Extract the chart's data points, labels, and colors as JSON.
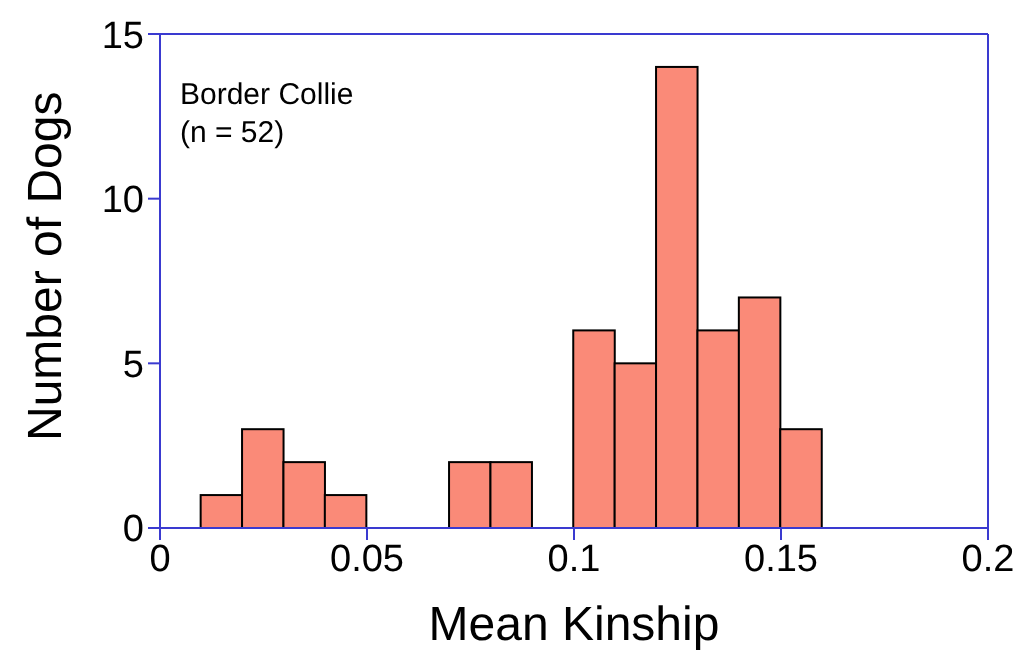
{
  "chart_data": {
    "type": "histogram",
    "xlabel": "Mean Kinship",
    "ylabel": "Number of Dogs",
    "annotations": [
      "Border Collie",
      "(n = 52)"
    ],
    "bins": [
      0.01,
      0.02,
      0.03,
      0.04,
      0.05,
      0.06,
      0.07,
      0.08,
      0.09,
      0.1,
      0.11,
      0.12,
      0.13,
      0.14,
      0.15,
      0.16
    ],
    "values": [
      1,
      3,
      2,
      1,
      0,
      0,
      2,
      2,
      0,
      6,
      5,
      14,
      6,
      7,
      3
    ],
    "color": "#fa8a78",
    "xlim": [
      0,
      0.2
    ],
    "xticks": [
      0,
      0.05,
      0.1,
      0.15,
      0.2
    ],
    "ylim": [
      0,
      15
    ],
    "yticks": [
      0,
      5,
      10,
      15
    ],
    "grid": false,
    "legend": false
  }
}
